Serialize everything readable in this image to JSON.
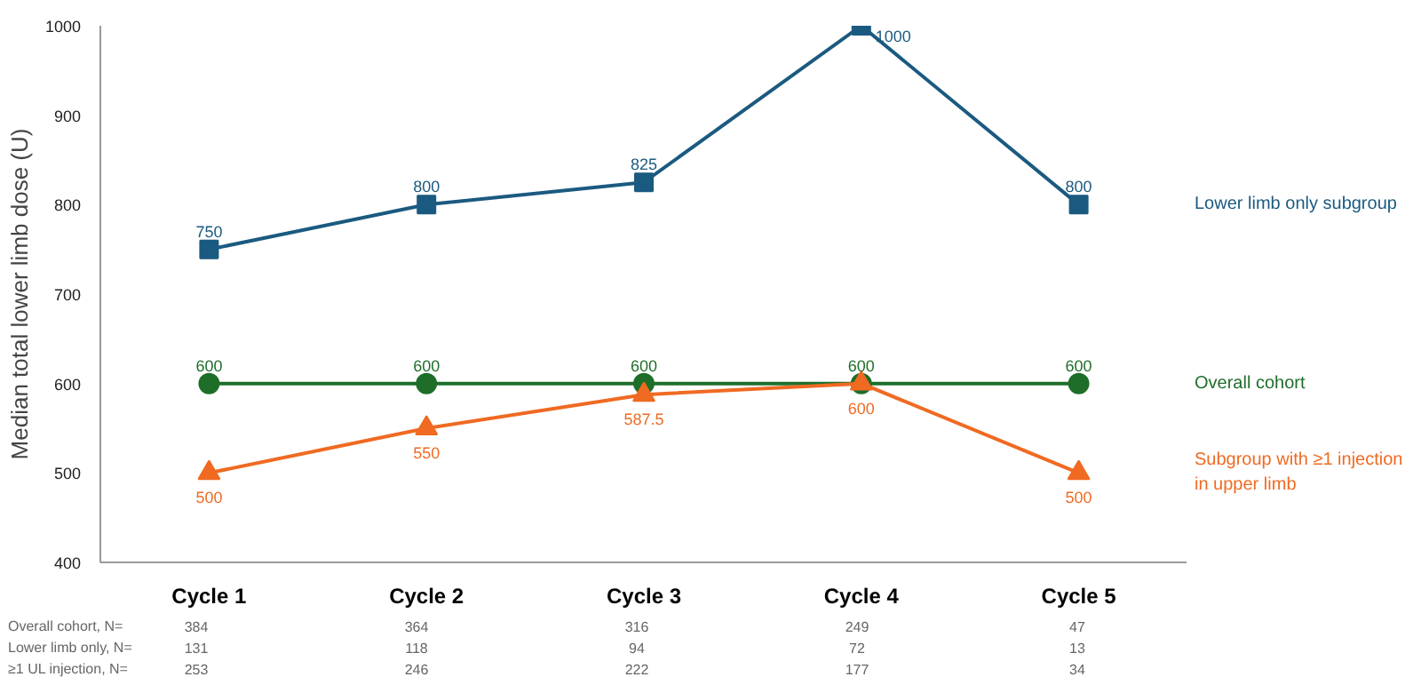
{
  "chart_data": {
    "type": "line",
    "ylabel": "Median total lower limb dose (U)",
    "categories": [
      "Cycle 1",
      "Cycle 2",
      "Cycle 3",
      "Cycle 4",
      "Cycle 5"
    ],
    "series": [
      {
        "name": "Lower limb only subgroup",
        "color": "#1b5a80",
        "marker": "square",
        "values": [
          750,
          800,
          825,
          1000,
          800
        ]
      },
      {
        "name": "Overall cohort",
        "color": "#1e6e2a",
        "marker": "circle",
        "values": [
          600,
          600,
          600,
          600,
          600
        ]
      },
      {
        "name": "Subgroup with ≥1 injection in upper limb",
        "color": "#f06a22",
        "marker": "triangle",
        "values": [
          500,
          550,
          587.5,
          600,
          500
        ]
      }
    ],
    "ylim": [
      400,
      1000
    ],
    "yticks": [
      400,
      500,
      600,
      700,
      800,
      900,
      1000
    ],
    "grid": false,
    "data_labels": true,
    "line_style": "solid",
    "annotations": [
      "Overall cohort,    N=",
      "384",
      "364",
      "316",
      "249",
      "47",
      "Lower limb only, N=",
      "131",
      "118",
      "94",
      "72",
      "13",
      "≥1 UL injection,   N=",
      "253",
      "246",
      "222",
      "177",
      "34"
    ]
  }
}
